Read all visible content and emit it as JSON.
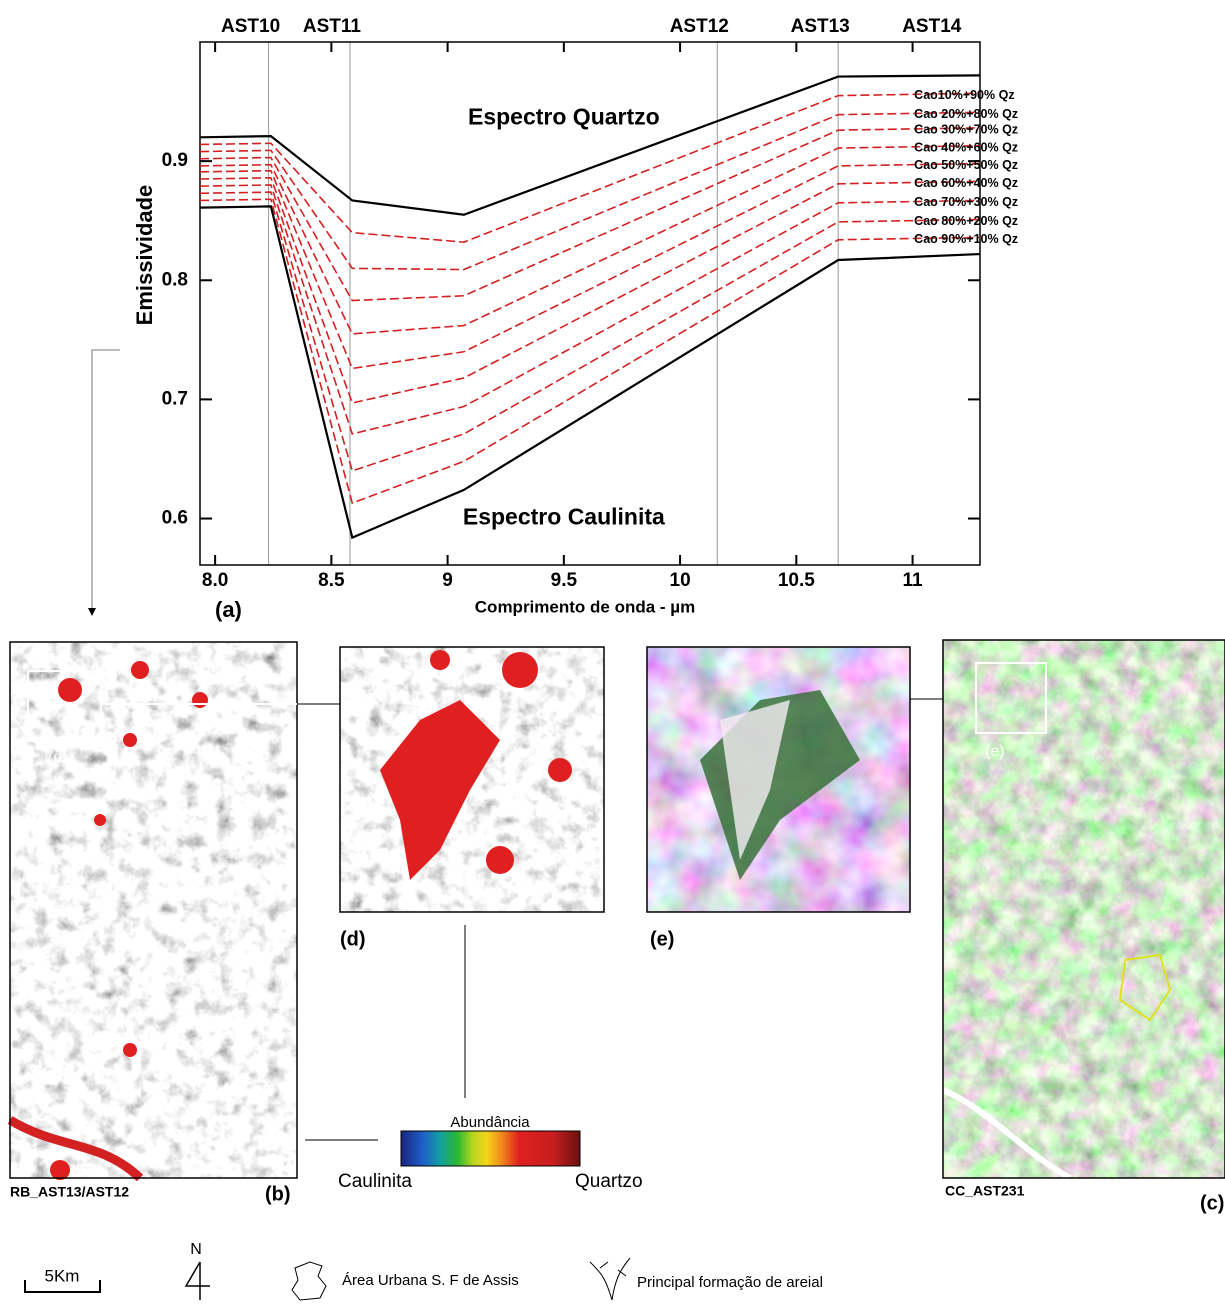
{
  "chart_data": {
    "type": "line",
    "x_label": "Comprimento de onda - µm",
    "y_label": "Emissividade",
    "panel_label": "(a)",
    "xlim": [
      7.935,
      11.29
    ],
    "ylim": [
      0.561,
      1.0
    ],
    "xticks": [
      {
        "value": 8,
        "label": "8.0"
      },
      8.5,
      9,
      9.5,
      10,
      10.5,
      11
    ],
    "yticks": [
      0.6,
      0.7,
      0.8,
      0.9
    ],
    "bands": [
      {
        "label": "AST10",
        "x": 8.23,
        "line": true
      },
      {
        "label": "AST11",
        "x": 8.58,
        "line": true
      },
      {
        "label": "AST12",
        "x": 10.16,
        "line": true
      },
      {
        "label": "AST13",
        "x": 10.68,
        "line": true
      },
      {
        "label": "AST14",
        "x": 11.16,
        "line": false
      }
    ],
    "annotations": [
      {
        "text": "Espectro Quartzo",
        "x": 9.5,
        "y": 0.936
      },
      {
        "text": "Espectro Caulinita",
        "x": 9.5,
        "y": 0.6
      }
    ],
    "x": [
      7.935,
      8.24,
      8.59,
      9.07,
      10.68,
      11.29
    ],
    "series": [
      {
        "color": "#000000",
        "style": "solid",
        "values": [
          0.92,
          0.921,
          0.867,
          0.855,
          0.971,
          0.972
        ]
      },
      {
        "color": "#000000",
        "style": "solid",
        "values": [
          0.861,
          0.862,
          0.584,
          0.624,
          0.817,
          0.822
        ]
      },
      {
        "name": "Cao10%+90% Qz",
        "color": "#d42020",
        "style": "dashed",
        "values": [
          0.914,
          0.915,
          0.84,
          0.832,
          0.955,
          0.957
        ]
      },
      {
        "name": "Cao 20%+80% Qz",
        "color": "#d42020",
        "style": "dashed",
        "values": [
          0.908,
          0.909,
          0.81,
          0.809,
          0.939,
          0.941
        ]
      },
      {
        "name": "Cao 30%+70% Qz",
        "color": "#d42020",
        "style": "dashed",
        "values": [
          0.902,
          0.903,
          0.783,
          0.787,
          0.926,
          0.928
        ]
      },
      {
        "name": "Cao 40%+60% Qz",
        "color": "#d42020",
        "style": "dashed",
        "values": [
          0.896,
          0.897,
          0.755,
          0.762,
          0.911,
          0.913
        ]
      },
      {
        "name": "Cao 50%+50% Qz",
        "color": "#d42020",
        "style": "dashed",
        "values": [
          0.891,
          0.892,
          0.726,
          0.74,
          0.896,
          0.898
        ]
      },
      {
        "name": "Cao 60%+40% Qz",
        "color": "#d42020",
        "style": "dashed",
        "values": [
          0.885,
          0.886,
          0.697,
          0.718,
          0.881,
          0.883
        ]
      },
      {
        "name": "Cao 70%+30% Qz",
        "color": "#d42020",
        "style": "dashed",
        "values": [
          0.879,
          0.88,
          0.671,
          0.694,
          0.865,
          0.867
        ]
      },
      {
        "name": "Cao 80%+20% Qz",
        "color": "#d42020",
        "style": "dashed",
        "values": [
          0.873,
          0.874,
          0.64,
          0.671,
          0.849,
          0.851
        ]
      },
      {
        "name": "Cao 90%+10% Qz",
        "color": "#d42020",
        "style": "dashed",
        "values": [
          0.867,
          0.868,
          0.613,
          0.648,
          0.834,
          0.836
        ]
      }
    ]
  },
  "figure": {
    "panel_b": {
      "caption": "RB_AST13/AST12",
      "label": "(b)",
      "inset_label": "(d)"
    },
    "panel_c": {
      "caption": "CC_AST231",
      "label": "(c)",
      "inset_label": "(e)"
    },
    "panel_d": {
      "label": "(d)"
    },
    "panel_e": {
      "label": "(e)"
    },
    "colorbar": {
      "title": "Abundância",
      "low": "Caulinita",
      "high": "Quartzo"
    },
    "scale_bar": "5Km",
    "north": "N",
    "legend_urban": "Área Urbana S. F de Assis",
    "legend_areial": "Principal formação de areial"
  }
}
